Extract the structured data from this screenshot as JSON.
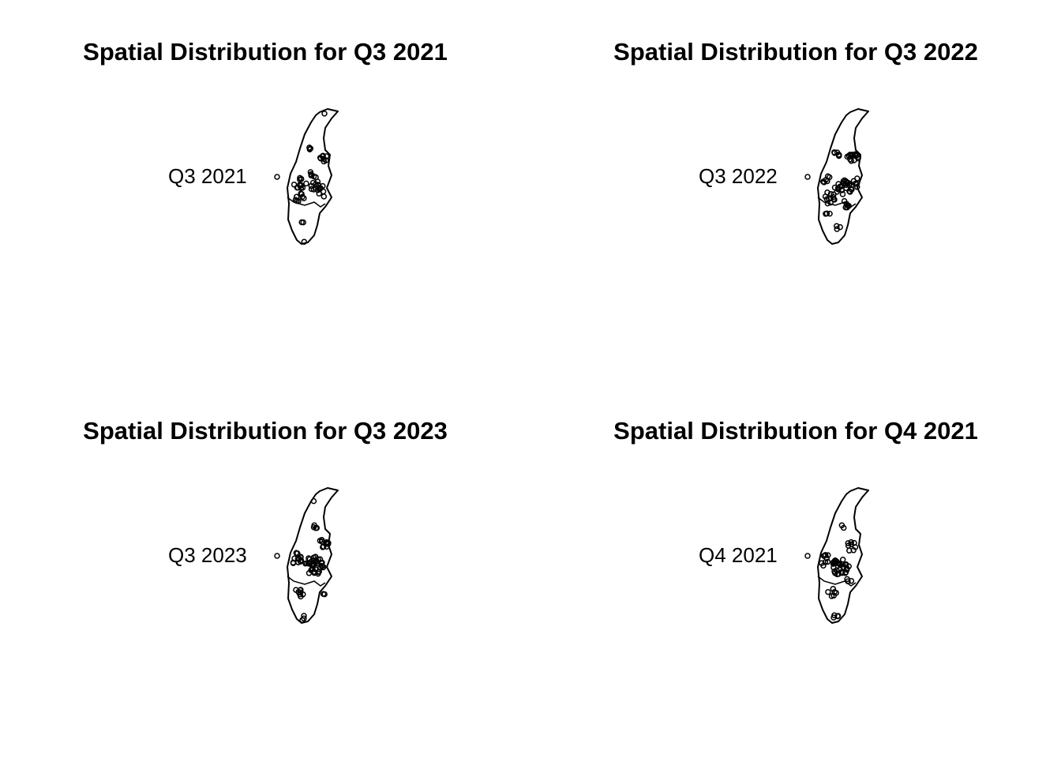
{
  "colors": {
    "background": "#ffffff",
    "outline": "#000000",
    "points": "#000000"
  },
  "panels": [
    {
      "title": "Spatial Distribution for Q3 2021",
      "legend_label": "Q3 2021",
      "legend_symbol": "open-circle",
      "point_density": "medium-scattered"
    },
    {
      "title": "Spatial Distribution for Q3 2022",
      "legend_label": "Q3 2022",
      "legend_symbol": "open-circle",
      "point_density": "dense-scattered"
    },
    {
      "title": "Spatial Distribution for Q3 2023",
      "legend_label": "Q3 2023",
      "legend_symbol": "open-circle",
      "point_density": "dense-central"
    },
    {
      "title": "Spatial Distribution for Q4 2021",
      "legend_label": "Q4 2021",
      "legend_symbol": "open-circle",
      "point_density": "dense-central"
    }
  ]
}
